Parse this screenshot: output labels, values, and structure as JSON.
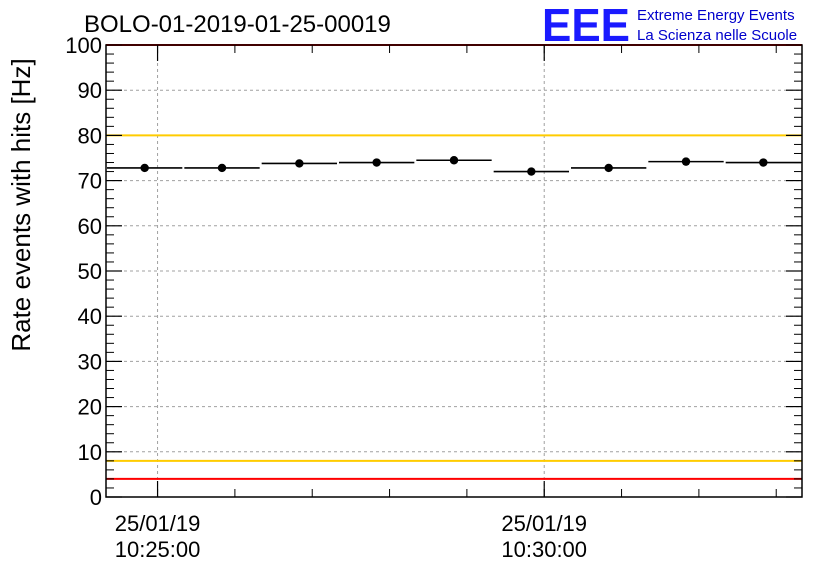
{
  "header": {
    "title": "BOLO-01-2019-01-25-00019",
    "logo_letters": "EEE",
    "logo_line1": "Extreme Energy Events",
    "logo_line2": "La Scienza nelle Scuole"
  },
  "colors": {
    "logo": "#1a1aff",
    "logo_text": "#0000cc",
    "upper_limit": "#ff0000",
    "lower_limit": "#ff0000",
    "upper_warning": "#ffcc00",
    "lower_warning": "#ffcc00",
    "data": "#000000",
    "grid": "#a0a0a0"
  },
  "chart_data": {
    "type": "scatter",
    "title": "BOLO-01-2019-01-25-00019",
    "ylabel": "Rate events with hits [Hz]",
    "xlabel": "",
    "ylim": [
      0,
      100
    ],
    "yticks": [
      0,
      10,
      20,
      30,
      40,
      50,
      60,
      70,
      80,
      90,
      100
    ],
    "xlim": [
      "2019-01-25 10:24:20",
      "2019-01-25 10:33:20"
    ],
    "xticks": [
      {
        "t": "2019-01-25 10:25:00",
        "date": "25/01/19",
        "time": "10:25:00"
      },
      {
        "t": "2019-01-25 10:30:00",
        "date": "25/01/19",
        "time": "10:30:00"
      }
    ],
    "grid": true,
    "reference_lines": [
      {
        "value": 100,
        "role": "upper_limit"
      },
      {
        "value": 80,
        "role": "upper_warning"
      },
      {
        "value": 8,
        "role": "lower_warning"
      },
      {
        "value": 4,
        "role": "lower_limit"
      }
    ],
    "series": [
      {
        "points": [
          {
            "start": "10:24:20",
            "end": "10:25:20",
            "x": "10:24:50",
            "y": 72.8
          },
          {
            "start": "10:25:20",
            "end": "10:26:20",
            "x": "10:25:50",
            "y": 72.8
          },
          {
            "start": "10:26:20",
            "end": "10:27:20",
            "x": "10:26:50",
            "y": 73.8
          },
          {
            "start": "10:27:20",
            "end": "10:28:20",
            "x": "10:27:50",
            "y": 74.0
          },
          {
            "start": "10:28:20",
            "end": "10:29:20",
            "x": "10:28:50",
            "y": 74.5
          },
          {
            "start": "10:29:20",
            "end": "10:30:20",
            "x": "10:29:50",
            "y": 72.0
          },
          {
            "start": "10:30:20",
            "end": "10:31:20",
            "x": "10:30:50",
            "y": 72.8
          },
          {
            "start": "10:31:20",
            "end": "10:32:20",
            "x": "10:31:50",
            "y": 74.2
          },
          {
            "start": "10:32:20",
            "end": "10:33:20",
            "x": "10:32:50",
            "y": 74.0
          }
        ]
      }
    ]
  }
}
